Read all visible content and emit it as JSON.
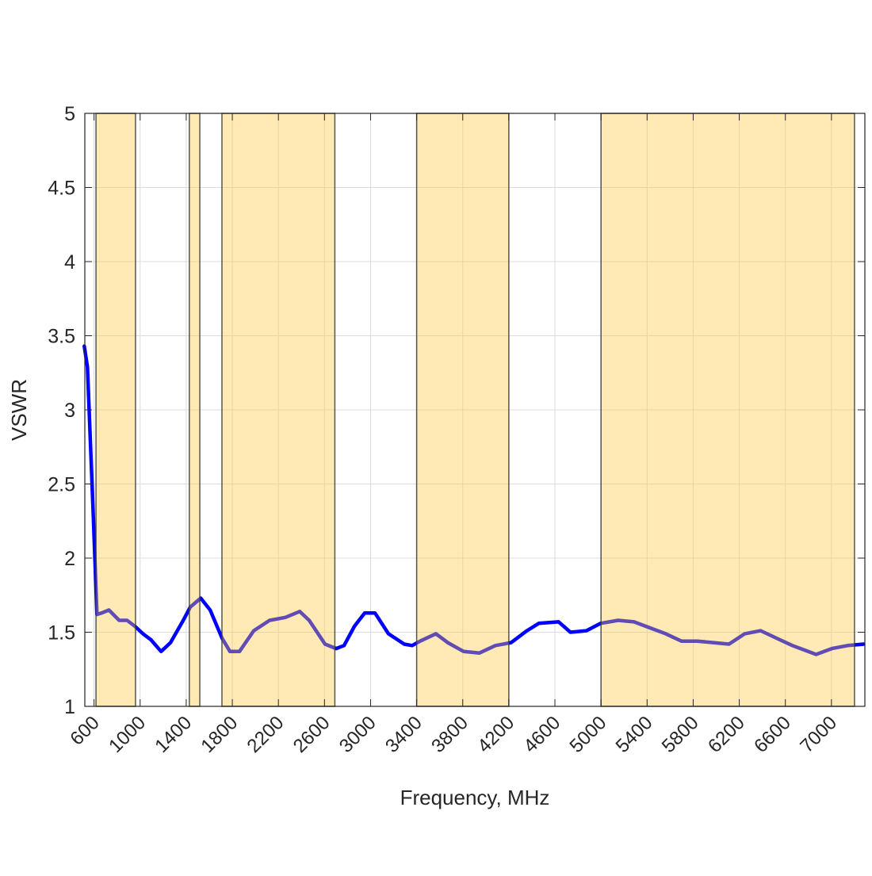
{
  "chart_data": {
    "type": "line",
    "title": "",
    "xlabel": "Frequency, MHz",
    "ylabel": "VSWR",
    "xlim": [
      520,
      7290
    ],
    "ylim": [
      1,
      5
    ],
    "xticks": [
      600,
      1000,
      1400,
      1800,
      2200,
      2600,
      3000,
      3400,
      3800,
      4200,
      4600,
      5000,
      5400,
      5800,
      6200,
      6600,
      7000
    ],
    "yticks": [
      1,
      1.5,
      2,
      2.5,
      3,
      3.5,
      4,
      4.5,
      5
    ],
    "ytick_labels": [
      "1",
      "1.5",
      "2",
      "2.5",
      "3",
      "3.5",
      "4",
      "4.5",
      "5"
    ],
    "grid": true,
    "line_color": "#0000ff",
    "band_color": "#ffc83c",
    "shaded_bands": [
      [
        617,
        960
      ],
      [
        1427,
        1518
      ],
      [
        1710,
        2690
      ],
      [
        3400,
        4200
      ],
      [
        5000,
        7200
      ]
    ],
    "series": [
      {
        "x": [
          515,
          543,
          591,
          625,
          667,
          729,
          818,
          887,
          955,
          1024,
          1093,
          1182,
          1264,
          1367,
          1436,
          1526,
          1608,
          1711,
          1780,
          1862,
          1986,
          2124,
          2261,
          2385,
          2467,
          2605,
          2701,
          2770,
          2860,
          2949,
          3038,
          3155,
          3292,
          3361,
          3430,
          3567,
          3670,
          3808,
          3945,
          4083,
          4220,
          4357,
          4460,
          4632,
          4735,
          4873,
          4997,
          5148,
          5286,
          5423,
          5561,
          5698,
          5836,
          5973,
          6111,
          6248,
          6386,
          6523,
          6661,
          6867,
          7004,
          7141,
          7279
        ],
        "y": [
          3.43,
          3.29,
          2.34,
          1.62,
          1.63,
          1.65,
          1.58,
          1.58,
          1.54,
          1.49,
          1.45,
          1.37,
          1.43,
          1.57,
          1.67,
          1.73,
          1.65,
          1.46,
          1.37,
          1.37,
          1.51,
          1.58,
          1.6,
          1.64,
          1.58,
          1.42,
          1.39,
          1.41,
          1.54,
          1.63,
          1.63,
          1.49,
          1.42,
          1.41,
          1.44,
          1.49,
          1.43,
          1.37,
          1.36,
          1.41,
          1.43,
          1.51,
          1.56,
          1.57,
          1.5,
          1.51,
          1.56,
          1.58,
          1.57,
          1.53,
          1.49,
          1.44,
          1.44,
          1.43,
          1.42,
          1.49,
          1.51,
          1.46,
          1.41,
          1.35,
          1.39,
          1.41,
          1.42
        ]
      }
    ]
  }
}
